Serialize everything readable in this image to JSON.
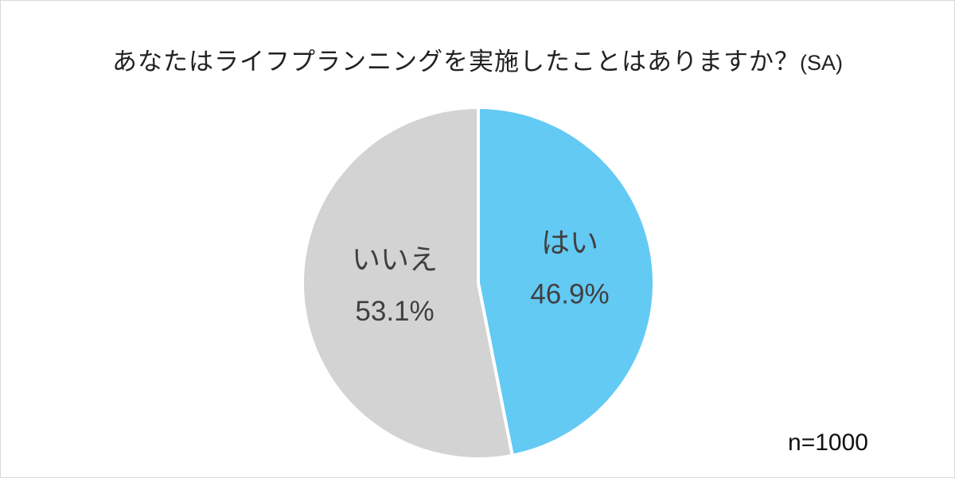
{
  "chart_data": {
    "type": "pie",
    "title": "あなたはライフプランニングを実施したことはありますか？",
    "title_suffix": "(SA)",
    "slices": [
      {
        "label": "はい",
        "value": 46.9,
        "value_label": "46.9%",
        "color": "#63CAF4"
      },
      {
        "label": "いいえ",
        "value": 53.1,
        "value_label": "53.1%",
        "color": "#D3D3D3"
      }
    ],
    "start": "12 o'clock",
    "direction": "clockwise",
    "legend": "none",
    "annotation": "n=1000"
  }
}
